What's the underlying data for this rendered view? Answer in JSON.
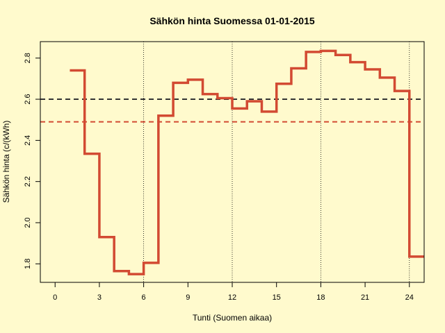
{
  "chart_data": {
    "type": "line",
    "title": "Sähkön hinta Suomessa 01-01-2015",
    "xlabel": "Tunti (Suomen aikaa)",
    "ylabel": "Sähkön hinta (c/(kWh)",
    "xlim": [
      -1,
      25
    ],
    "ylim": [
      1.71,
      2.88
    ],
    "xticks": [
      0,
      3,
      6,
      9,
      12,
      15,
      18,
      21,
      24
    ],
    "yticks": [
      1.8,
      2.0,
      2.2,
      2.4,
      2.6,
      2.8
    ],
    "ytick_labels": [
      "1.8",
      "2.0",
      "2.2",
      "2.4",
      "2.6",
      "2.8"
    ],
    "step_series": {
      "color": "#d24a32",
      "hours": [
        1,
        2,
        3,
        4,
        5,
        6,
        7,
        8,
        9,
        10,
        11,
        12,
        13,
        14,
        15,
        16,
        17,
        18,
        19,
        20,
        21,
        22,
        23,
        24
      ],
      "values": [
        2.74,
        2.335,
        1.93,
        1.765,
        1.75,
        1.805,
        2.52,
        2.68,
        2.695,
        2.625,
        2.605,
        2.555,
        2.59,
        2.54,
        2.675,
        2.75,
        2.83,
        2.835,
        2.815,
        2.78,
        2.745,
        2.705,
        2.64,
        1.835
      ]
    },
    "hlines": [
      {
        "value": 2.6,
        "color": "#333333",
        "style": "dashed"
      },
      {
        "value": 2.49,
        "color": "#d24a32",
        "style": "dashed"
      }
    ],
    "vlines": [
      6,
      12,
      18,
      24
    ],
    "grid": false
  }
}
